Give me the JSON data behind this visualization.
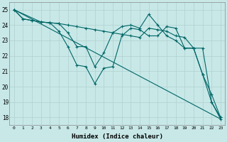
{
  "xlabel": "Humidex (Indice chaleur)",
  "background_color": "#c8e8e8",
  "grid_color": "#b0d0d0",
  "line_color": "#006666",
  "xlim": [
    -0.5,
    23.5
  ],
  "ylim": [
    17.5,
    25.5
  ],
  "yticks": [
    18,
    19,
    20,
    21,
    22,
    23,
    24,
    25
  ],
  "xticks": [
    0,
    1,
    2,
    3,
    4,
    5,
    6,
    7,
    8,
    9,
    10,
    11,
    12,
    13,
    14,
    15,
    16,
    17,
    18,
    19,
    20,
    21,
    22,
    23
  ],
  "series": [
    {
      "x": [
        0,
        1,
        2,
        3,
        4,
        5,
        6,
        7,
        8,
        9,
        10,
        11,
        12,
        13,
        14,
        15,
        16,
        17,
        18,
        19,
        20,
        21,
        22,
        23
      ],
      "y": [
        25.0,
        24.4,
        24.3,
        24.2,
        24.15,
        24.1,
        24.0,
        23.9,
        23.8,
        23.7,
        23.6,
        23.5,
        23.4,
        23.3,
        23.2,
        23.8,
        23.7,
        23.6,
        23.3,
        23.2,
        22.5,
        22.5,
        19.0,
        18.0
      ]
    },
    {
      "x": [
        0,
        1,
        2,
        3,
        4,
        5,
        6,
        7,
        8,
        9,
        10,
        11,
        12,
        13,
        14,
        15,
        16,
        17,
        18,
        19,
        20,
        21,
        22,
        23
      ],
      "y": [
        25.0,
        24.4,
        24.3,
        24.2,
        24.15,
        24.1,
        23.5,
        22.6,
        22.6,
        21.3,
        22.2,
        23.5,
        23.9,
        24.0,
        23.8,
        24.7,
        24.0,
        23.3,
        23.0,
        22.5,
        22.5,
        20.8,
        19.5,
        18.0
      ]
    },
    {
      "x": [
        0,
        3,
        4,
        5,
        6,
        7,
        8,
        9,
        10,
        11,
        12,
        13,
        14,
        15,
        16,
        17,
        18,
        19,
        20,
        21,
        22,
        23
      ],
      "y": [
        25.0,
        24.2,
        24.15,
        23.6,
        22.6,
        21.4,
        21.3,
        20.2,
        21.2,
        21.3,
        23.3,
        23.8,
        23.7,
        23.3,
        23.3,
        23.9,
        23.8,
        22.5,
        22.5,
        20.8,
        19.0,
        17.9
      ]
    },
    {
      "x": [
        0,
        23
      ],
      "y": [
        25.0,
        17.9
      ]
    }
  ]
}
